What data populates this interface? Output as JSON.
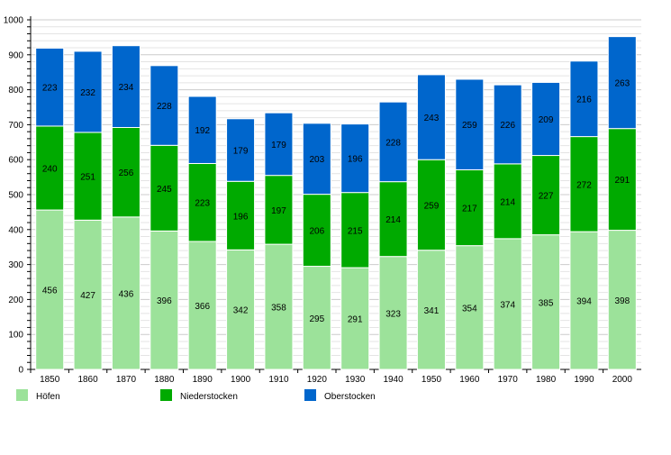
{
  "chart_data": {
    "type": "bar",
    "stacked": true,
    "categories": [
      "1850",
      "1860",
      "1870",
      "1880",
      "1890",
      "1900",
      "1910",
      "1920",
      "1930",
      "1940",
      "1950",
      "1960",
      "1970",
      "1980",
      "1990",
      "2000"
    ],
    "series": [
      {
        "name": "Höfen",
        "color": "#9ce29a",
        "values": [
          456,
          427,
          436,
          396,
          366,
          342,
          358,
          295,
          291,
          323,
          341,
          354,
          374,
          385,
          394,
          398
        ]
      },
      {
        "name": "Niederstocken",
        "color": "#00aa00",
        "values": [
          240,
          251,
          256,
          245,
          223,
          196,
          197,
          206,
          215,
          214,
          259,
          217,
          214,
          227,
          272,
          291
        ]
      },
      {
        "name": "Oberstocken",
        "color": "#0066cc",
        "values": [
          223,
          232,
          234,
          228,
          192,
          179,
          179,
          203,
          196,
          228,
          243,
          259,
          226,
          209,
          216,
          263
        ]
      }
    ],
    "ylim": [
      0,
      1000
    ],
    "yticks": [
      0,
      100,
      200,
      300,
      400,
      500,
      600,
      700,
      800,
      900,
      1000
    ],
    "grid": true,
    "legend": "bottom",
    "data_labels": true
  }
}
